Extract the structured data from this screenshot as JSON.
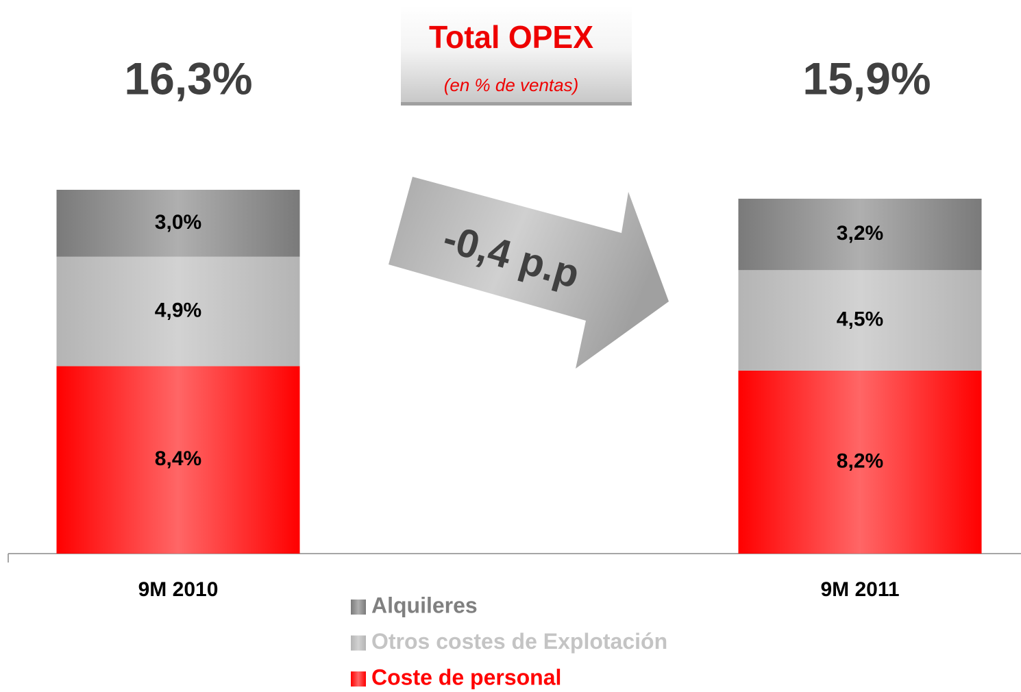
{
  "chart_data": {
    "type": "stacked_bar",
    "title": "Total OPEX",
    "subtitle": "(en % de ventas)",
    "annotation": "-0,4 p.p",
    "categories": [
      "9M 2010",
      "9M 2011"
    ],
    "series": [
      {
        "name": "Coste de personal",
        "color": "#ff0000",
        "values": [
          8.4,
          8.2
        ],
        "value_labels": [
          "8,4%",
          "8,2%"
        ]
      },
      {
        "name": "Otros costes de Explotación",
        "color": "#b4b4b4",
        "values": [
          4.9,
          4.5
        ],
        "value_labels": [
          "4,9%",
          "4,5%"
        ]
      },
      {
        "name": "Alquileres",
        "color": "#7a7a7a",
        "values": [
          3.0,
          3.2
        ],
        "value_labels": [
          "3,0%",
          "3,2%"
        ]
      }
    ],
    "totals": {
      "values": [
        16.3,
        15.9
      ],
      "value_labels": [
        "16,3%",
        "15,9%"
      ]
    }
  }
}
